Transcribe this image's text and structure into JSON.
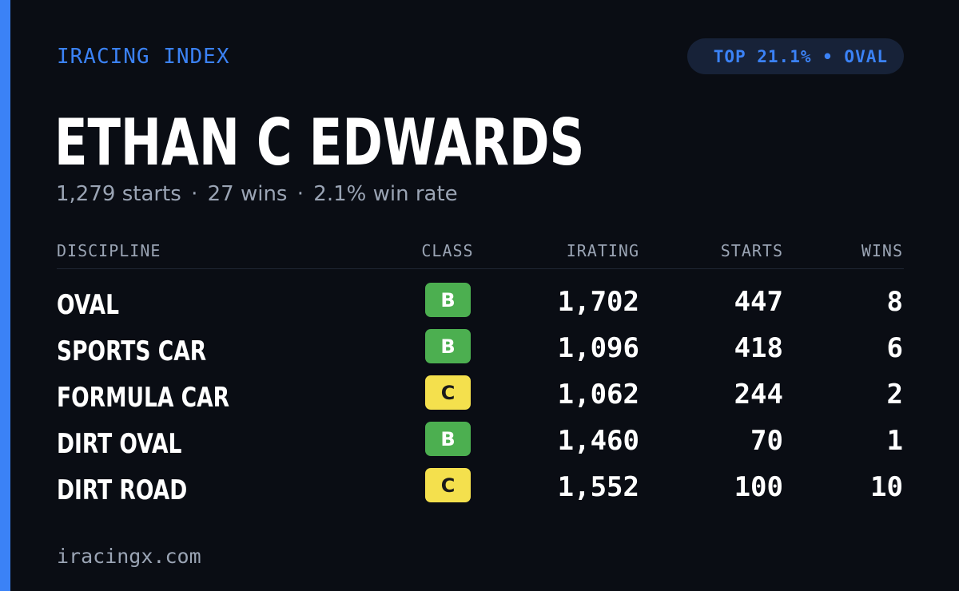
{
  "brand": "IRACING INDEX",
  "rank_badge": "TOP 21.1% • OVAL",
  "driver": {
    "name": "ETHAN C EDWARDS",
    "starts": "1,279 starts",
    "wins": "27 wins",
    "win_rate": "2.1% win rate",
    "separator": "·"
  },
  "table": {
    "headers": {
      "discipline": "DISCIPLINE",
      "class": "CLASS",
      "irating": "IRATING",
      "starts": "STARTS",
      "wins": "WINS"
    },
    "rows": [
      {
        "discipline": "OVAL",
        "class": "B",
        "irating": "1,702",
        "starts": "447",
        "wins": "8"
      },
      {
        "discipline": "SPORTS CAR",
        "class": "B",
        "irating": "1,096",
        "starts": "418",
        "wins": "6"
      },
      {
        "discipline": "FORMULA CAR",
        "class": "C",
        "irating": "1,062",
        "starts": "244",
        "wins": "2"
      },
      {
        "discipline": "DIRT OVAL",
        "class": "B",
        "irating": "1,460",
        "starts": "70",
        "wins": "1"
      },
      {
        "discipline": "DIRT ROAD",
        "class": "C",
        "irating": "1,552",
        "starts": "100",
        "wins": "10"
      }
    ]
  },
  "footer": "iracingx.com",
  "colors": {
    "background": "#0a0d14",
    "accent": "#3b82f6",
    "class_b": "#4caf50",
    "class_c": "#f4e04d",
    "muted_text": "#9aa4b4"
  }
}
